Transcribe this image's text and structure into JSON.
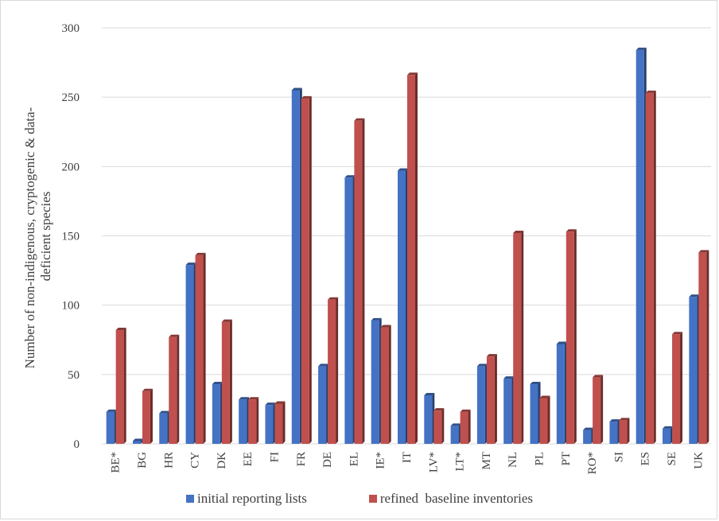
{
  "chart_data": {
    "type": "bar",
    "ylabel": "Number of non-indigenous, cryptogenic & data-deficient species",
    "ylabel_lines": [
      "Number of non-indigenous, cryptogenic & data-",
      "deficient species"
    ],
    "ylim": [
      0,
      300
    ],
    "yticks": [
      "0",
      "50",
      "100",
      "150",
      "200",
      "250",
      "300"
    ],
    "grid": true,
    "legend_position": "bottom",
    "categories": [
      "BE*",
      "BG",
      "HR",
      "CY",
      "DK",
      "EE",
      "FI",
      "FR",
      "DE",
      "EL",
      "IE*",
      "IT",
      "LV*",
      "LT*",
      "MT",
      "NL",
      "PL",
      "PT",
      "RO*",
      "SI",
      "ES",
      "SE",
      "UK"
    ],
    "series": [
      {
        "name": "initial reporting lists",
        "color": "#4472c4",
        "values": [
          23,
          2,
          22,
          129,
          43,
          32,
          28,
          255,
          56,
          192,
          89,
          197,
          35,
          13,
          56,
          47,
          43,
          72,
          10,
          16,
          284,
          11,
          106
        ]
      },
      {
        "name": "refined  baseline inventories",
        "color": "#c0504d",
        "values": [
          82,
          38,
          77,
          136,
          88,
          32,
          29,
          249,
          104,
          233,
          84,
          266,
          24,
          23,
          63,
          152,
          33,
          153,
          48,
          17,
          253,
          79,
          138
        ]
      }
    ]
  }
}
